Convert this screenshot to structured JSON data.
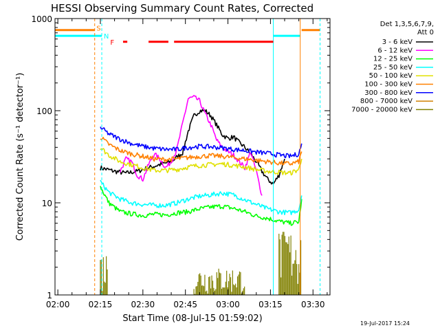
{
  "chart_data": {
    "type": "line",
    "title": "HESSI Observing Summary Count Rates, Corrected",
    "xlabel": "Start Time (08-Jul-15 01:59:02)",
    "ylabel": "Corrected Count Rate (s⁻¹ detector⁻¹)",
    "y_scale": "log",
    "ylim": [
      1,
      1000
    ],
    "xlim_minutes": [
      -1,
      96
    ],
    "x_ticks": [
      {
        "m": 0,
        "label": "02:00"
      },
      {
        "m": 15,
        "label": "02:15"
      },
      {
        "m": 30,
        "label": "02:30"
      },
      {
        "m": 45,
        "label": "02:45"
      },
      {
        "m": 60,
        "label": "03:00"
      },
      {
        "m": 75,
        "label": "03:15"
      },
      {
        "m": 90,
        "label": "03:30"
      }
    ],
    "y_ticks": [
      {
        "v": 1,
        "label": "1"
      },
      {
        "v": 10,
        "label": "10"
      },
      {
        "v": 100,
        "label": "100"
      },
      {
        "v": 1000,
        "label": "1000"
      }
    ],
    "legend_header": [
      "Det 1,3,5,6,7,9,",
      "Att 0"
    ],
    "legend_position": "top-right outside",
    "footer_date": "19-Jul-2017 15:24",
    "flag_labels": {
      "saa": "S",
      "night": "N",
      "flare": "F"
    },
    "series": [
      {
        "name": "3 - 6 keV",
        "color": "#000000",
        "points": [
          [
            15,
            24
          ],
          [
            20,
            22
          ],
          [
            24,
            21
          ],
          [
            28,
            22
          ],
          [
            32,
            24
          ],
          [
            36,
            26
          ],
          [
            40,
            28
          ],
          [
            44,
            35
          ],
          [
            46,
            60
          ],
          [
            48,
            88
          ],
          [
            50,
            100
          ],
          [
            52,
            100
          ],
          [
            54,
            88
          ],
          [
            56,
            70
          ],
          [
            58,
            55
          ],
          [
            60,
            50
          ],
          [
            62,
            52
          ],
          [
            64,
            45
          ],
          [
            66,
            40
          ],
          [
            68,
            34
          ],
          [
            70,
            28
          ],
          [
            72,
            22
          ],
          [
            74,
            18
          ],
          [
            76,
            16
          ],
          [
            78,
            20
          ],
          [
            80,
            30
          ]
        ]
      },
      {
        "name": "6 - 12 keV",
        "color": "#ff00ff",
        "points": [
          [
            22,
            22
          ],
          [
            24,
            30
          ],
          [
            26,
            28
          ],
          [
            28,
            20
          ],
          [
            30,
            18
          ],
          [
            32,
            26
          ],
          [
            34,
            34
          ],
          [
            36,
            30
          ],
          [
            38,
            24
          ],
          [
            40,
            28
          ],
          [
            42,
            38
          ],
          [
            44,
            72
          ],
          [
            46,
            135
          ],
          [
            48,
            140
          ],
          [
            50,
            128
          ],
          [
            52,
            92
          ],
          [
            54,
            70
          ],
          [
            56,
            48
          ],
          [
            58,
            40
          ],
          [
            60,
            36
          ],
          [
            62,
            33
          ],
          [
            64,
            28
          ],
          [
            66,
            24
          ],
          [
            68,
            36
          ],
          [
            70,
            22
          ],
          [
            72,
            12
          ]
        ]
      },
      {
        "name": "12 - 25 keV",
        "color": "#00ff00",
        "points": [
          [
            15,
            15
          ],
          [
            18,
            10
          ],
          [
            22,
            8
          ],
          [
            26,
            7.6
          ],
          [
            30,
            7.3
          ],
          [
            34,
            7.5
          ],
          [
            38,
            7.4
          ],
          [
            42,
            7.8
          ],
          [
            46,
            8
          ],
          [
            50,
            8.6
          ],
          [
            54,
            9
          ],
          [
            58,
            9.2
          ],
          [
            62,
            8.7
          ],
          [
            66,
            8
          ],
          [
            70,
            7.2
          ],
          [
            74,
            6.8
          ],
          [
            78,
            6.3
          ],
          [
            82,
            6
          ],
          [
            85,
            6.2
          ],
          [
            86,
            11
          ]
        ]
      },
      {
        "name": "25 - 50 keV",
        "color": "#00ffff",
        "points": [
          [
            15,
            17
          ],
          [
            18,
            13
          ],
          [
            22,
            11
          ],
          [
            26,
            10
          ],
          [
            30,
            9.6
          ],
          [
            34,
            9.4
          ],
          [
            38,
            9.4
          ],
          [
            42,
            10
          ],
          [
            46,
            11
          ],
          [
            50,
            11.8
          ],
          [
            54,
            12.2
          ],
          [
            58,
            12.8
          ],
          [
            62,
            12.2
          ],
          [
            66,
            10.8
          ],
          [
            70,
            9.6
          ],
          [
            74,
            8.6
          ],
          [
            78,
            8
          ],
          [
            82,
            7.8
          ],
          [
            85,
            8.4
          ],
          [
            86,
            12
          ]
        ]
      },
      {
        "name": "50 - 100 keV",
        "color": "#e0e000",
        "points": [
          [
            15,
            40
          ],
          [
            18,
            33
          ],
          [
            22,
            28
          ],
          [
            26,
            26
          ],
          [
            30,
            24
          ],
          [
            34,
            22.5
          ],
          [
            38,
            22.5
          ],
          [
            42,
            23
          ],
          [
            46,
            24.5
          ],
          [
            50,
            25.5
          ],
          [
            54,
            26
          ],
          [
            58,
            26.5
          ],
          [
            62,
            25.5
          ],
          [
            66,
            24.5
          ],
          [
            70,
            23
          ],
          [
            74,
            22
          ],
          [
            78,
            21.5
          ],
          [
            82,
            21
          ],
          [
            85,
            23
          ],
          [
            86,
            30
          ]
        ]
      },
      {
        "name": "100 - 300 keV",
        "color": "#ff8000",
        "points": [
          [
            15,
            52
          ],
          [
            18,
            43
          ],
          [
            22,
            37
          ],
          [
            26,
            34
          ],
          [
            30,
            32
          ],
          [
            34,
            30
          ],
          [
            38,
            29.5
          ],
          [
            42,
            30
          ],
          [
            46,
            31
          ],
          [
            50,
            32
          ],
          [
            54,
            32.5
          ],
          [
            58,
            32
          ],
          [
            62,
            31
          ],
          [
            66,
            30
          ],
          [
            70,
            29
          ],
          [
            74,
            28
          ],
          [
            78,
            27
          ],
          [
            82,
            26.5
          ],
          [
            85,
            28
          ],
          [
            86,
            36
          ]
        ]
      },
      {
        "name": "300 - 800 keV",
        "color": "#0000ff",
        "points": [
          [
            15,
            66
          ],
          [
            18,
            56
          ],
          [
            22,
            49
          ],
          [
            26,
            44
          ],
          [
            30,
            41
          ],
          [
            34,
            39
          ],
          [
            38,
            38
          ],
          [
            42,
            38
          ],
          [
            46,
            40
          ],
          [
            50,
            41
          ],
          [
            54,
            40.5
          ],
          [
            58,
            39.5
          ],
          [
            62,
            38
          ],
          [
            66,
            37
          ],
          [
            70,
            35.5
          ],
          [
            74,
            34.5
          ],
          [
            78,
            33
          ],
          [
            82,
            32
          ],
          [
            85,
            34
          ],
          [
            86,
            44
          ]
        ]
      },
      {
        "name": "800 - 7000 keV",
        "color": "#d08000",
        "points": []
      },
      {
        "name": "7000 - 20000 keV",
        "color": "#808000",
        "points": []
      }
    ]
  }
}
